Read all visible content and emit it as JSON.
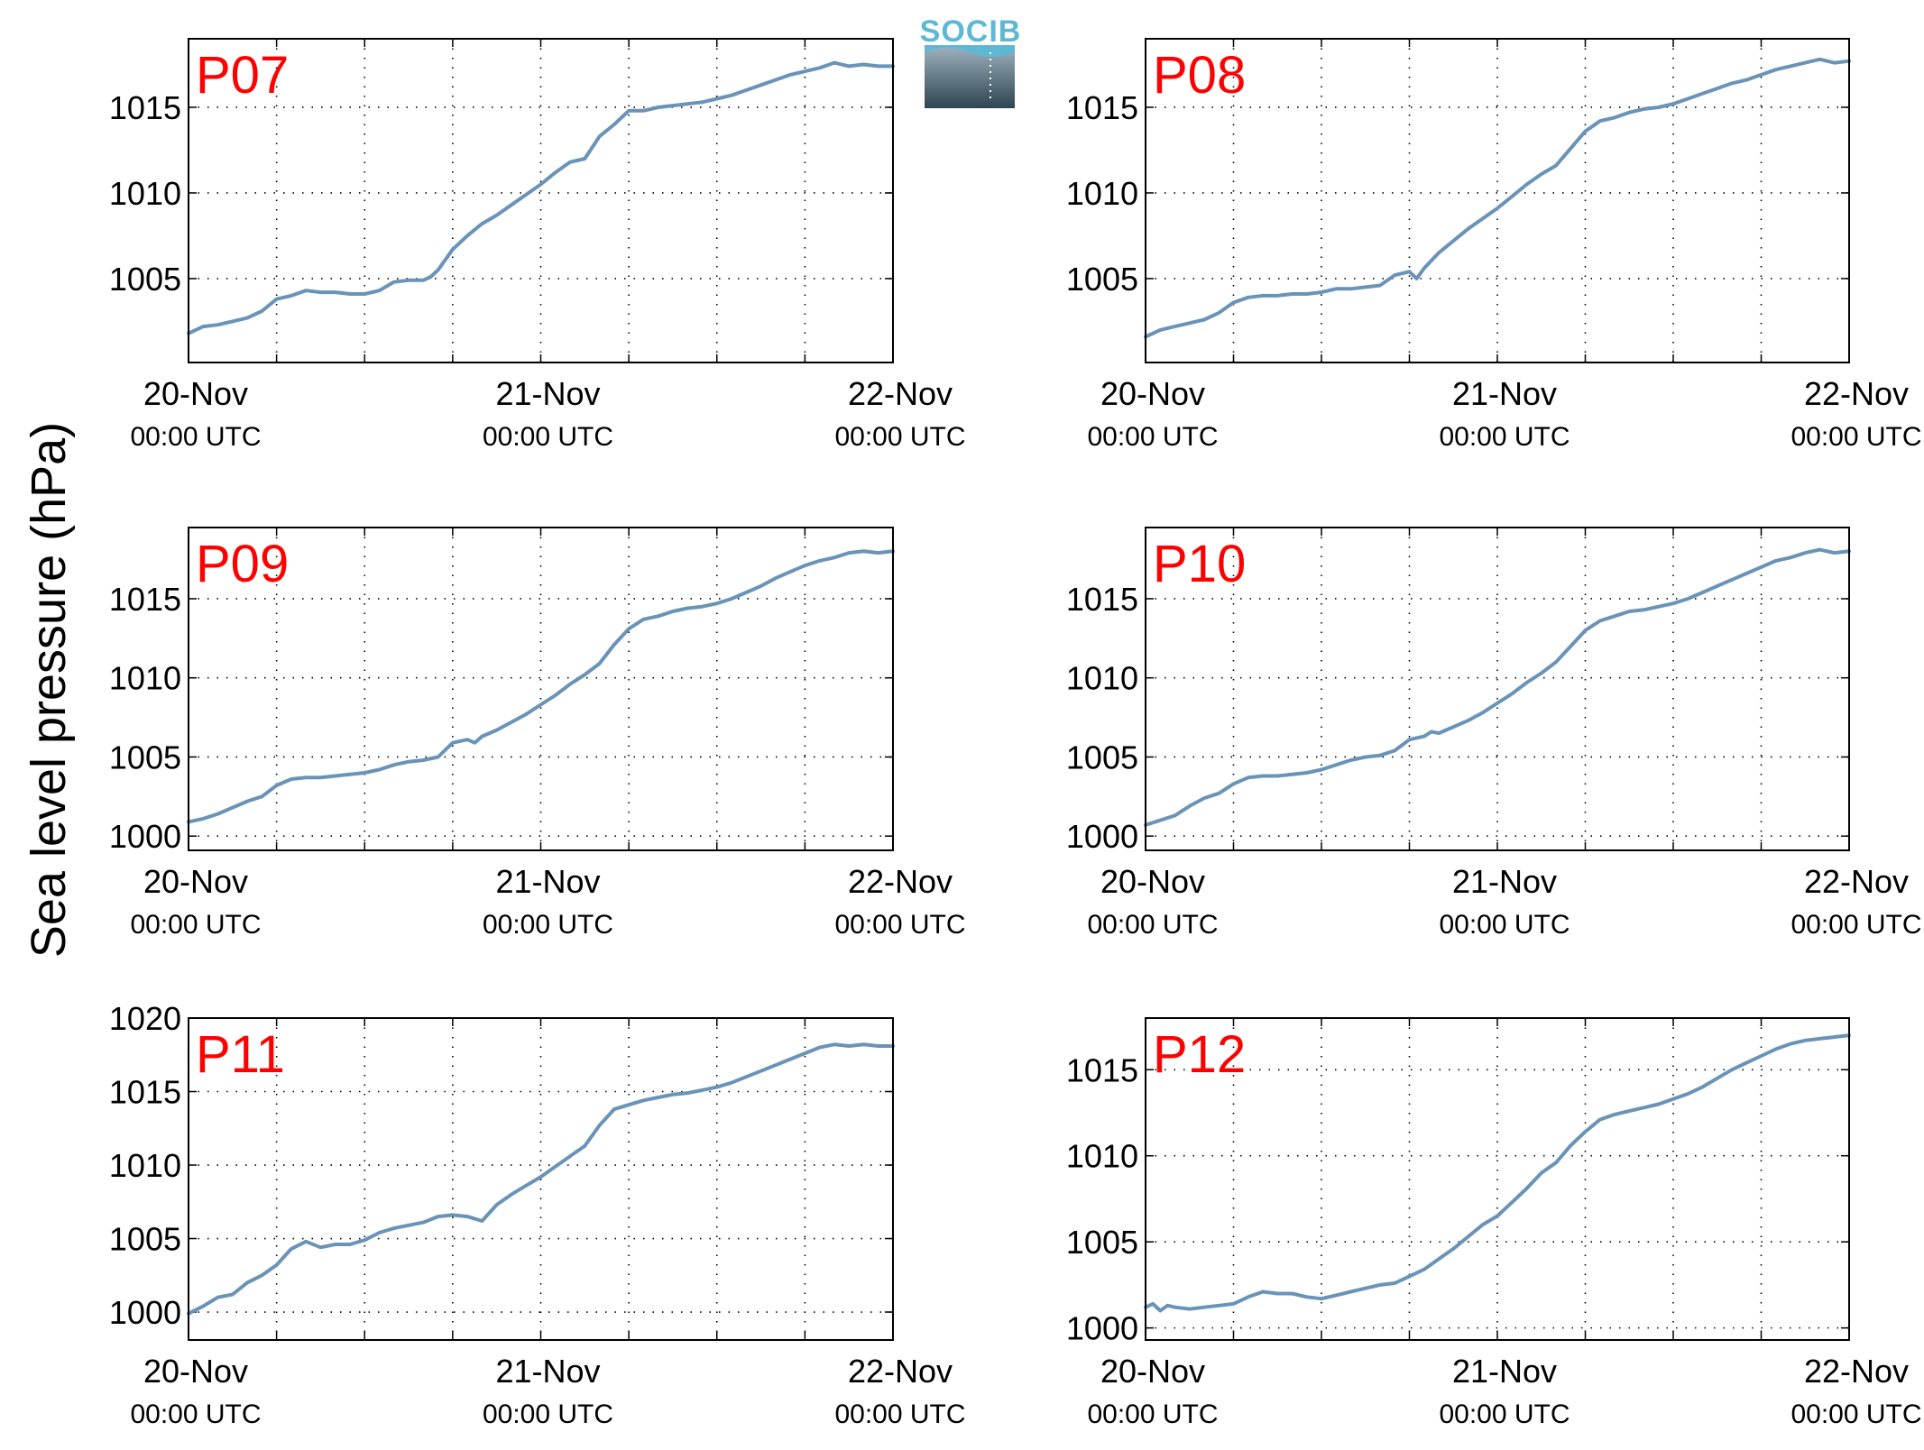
{
  "ylabel": "Sea level pressure (hPa)",
  "logo": {
    "text": "SOCIB",
    "icon": "socib-logo",
    "color_top": "#5fb8d3",
    "color_bottom": "#2e4450"
  },
  "style": {
    "line_color": "#6a93b8",
    "title_color": "#ff0000",
    "grid": "dotted"
  },
  "chart_data": [
    {
      "type": "line",
      "title": "P07",
      "x_ticks": [
        {
          "date": "20-Nov",
          "time": "00:00 UTC"
        },
        {
          "date": "21-Nov",
          "time": "00:00 UTC"
        },
        {
          "date": "22-Nov",
          "time": "00:00 UTC"
        }
      ],
      "y_ticks": [
        1005,
        1010,
        1015
      ],
      "xlim_hours": [
        0,
        48
      ],
      "ylim": [
        1000.1,
        1019.0
      ],
      "grid": true,
      "series": [
        {
          "x_hours": [
            0,
            1,
            2,
            3,
            4,
            5,
            6,
            7,
            8,
            9,
            10,
            11,
            12,
            13,
            14,
            15,
            16,
            16.5,
            17,
            18,
            19,
            20,
            21,
            22,
            23,
            24,
            25,
            26,
            27,
            28,
            29,
            30,
            31,
            32,
            33,
            34,
            35,
            36,
            37,
            38,
            39,
            40,
            41,
            42,
            43,
            44,
            45,
            46,
            47,
            48
          ],
          "values": [
            1001.8,
            1002.2,
            1002.3,
            1002.5,
            1002.7,
            1003.1,
            1003.8,
            1004.0,
            1004.3,
            1004.2,
            1004.2,
            1004.1,
            1004.1,
            1004.3,
            1004.8,
            1004.9,
            1004.9,
            1005.1,
            1005.5,
            1006.7,
            1007.5,
            1008.2,
            1008.7,
            1009.3,
            1009.9,
            1010.5,
            1011.2,
            1011.8,
            1012.0,
            1013.3,
            1014.0,
            1014.8,
            1014.8,
            1015.0,
            1015.1,
            1015.2,
            1015.3,
            1015.5,
            1015.7,
            1016.0,
            1016.3,
            1016.6,
            1016.9,
            1017.1,
            1017.3,
            1017.6,
            1017.4,
            1017.5,
            1017.4,
            1017.4
          ]
        }
      ]
    },
    {
      "type": "line",
      "title": "P08",
      "x_ticks": [
        {
          "date": "20-Nov",
          "time": "00:00 UTC"
        },
        {
          "date": "21-Nov",
          "time": "00:00 UTC"
        },
        {
          "date": "22-Nov",
          "time": "00:00 UTC"
        }
      ],
      "y_ticks": [
        1005,
        1010,
        1015
      ],
      "xlim_hours": [
        0,
        48
      ],
      "ylim": [
        1000.1,
        1019.0
      ],
      "grid": true,
      "series": [
        {
          "x_hours": [
            0,
            1,
            2,
            3,
            4,
            5,
            6,
            7,
            8,
            9,
            10,
            11,
            12,
            13,
            14,
            15,
            16,
            17,
            18,
            18.5,
            19,
            20,
            21,
            22,
            23,
            24,
            25,
            26,
            27,
            28,
            29,
            30,
            31,
            32,
            33,
            34,
            35,
            36,
            37,
            38,
            39,
            40,
            41,
            42,
            43,
            44,
            45,
            46,
            47,
            48
          ],
          "values": [
            1001.6,
            1002.0,
            1002.2,
            1002.4,
            1002.6,
            1003.0,
            1003.6,
            1003.9,
            1004.0,
            1004.0,
            1004.1,
            1004.1,
            1004.2,
            1004.4,
            1004.4,
            1004.5,
            1004.6,
            1005.2,
            1005.4,
            1005.0,
            1005.6,
            1006.5,
            1007.2,
            1007.9,
            1008.5,
            1009.1,
            1009.8,
            1010.5,
            1011.1,
            1011.6,
            1012.6,
            1013.6,
            1014.2,
            1014.4,
            1014.7,
            1014.9,
            1015.0,
            1015.2,
            1015.5,
            1015.8,
            1016.1,
            1016.4,
            1016.6,
            1016.9,
            1017.2,
            1017.4,
            1017.6,
            1017.8,
            1017.6,
            1017.7
          ]
        }
      ]
    },
    {
      "type": "line",
      "title": "P09",
      "x_ticks": [
        {
          "date": "20-Nov",
          "time": "00:00 UTC"
        },
        {
          "date": "21-Nov",
          "time": "00:00 UTC"
        },
        {
          "date": "22-Nov",
          "time": "00:00 UTC"
        }
      ],
      "y_ticks": [
        1000,
        1005,
        1010,
        1015
      ],
      "xlim_hours": [
        0,
        48
      ],
      "ylim": [
        999.1,
        1019.5
      ],
      "grid": true,
      "series": [
        {
          "x_hours": [
            0,
            1,
            2,
            3,
            4,
            5,
            6,
            7,
            8,
            9,
            10,
            11,
            12,
            13,
            14,
            15,
            16,
            17,
            18,
            19,
            19.5,
            20,
            21,
            22,
            23,
            24,
            25,
            26,
            27,
            28,
            29,
            30,
            31,
            32,
            33,
            34,
            35,
            36,
            37,
            38,
            39,
            40,
            41,
            42,
            43,
            44,
            45,
            46,
            47,
            48
          ],
          "values": [
            1000.9,
            1001.1,
            1001.4,
            1001.8,
            1002.2,
            1002.5,
            1003.2,
            1003.6,
            1003.7,
            1003.7,
            1003.8,
            1003.9,
            1004.0,
            1004.2,
            1004.5,
            1004.7,
            1004.8,
            1005.0,
            1005.9,
            1006.1,
            1005.9,
            1006.3,
            1006.7,
            1007.2,
            1007.7,
            1008.3,
            1008.9,
            1009.6,
            1010.2,
            1010.9,
            1012.1,
            1013.1,
            1013.7,
            1013.9,
            1014.2,
            1014.4,
            1014.5,
            1014.7,
            1015.0,
            1015.4,
            1015.8,
            1016.3,
            1016.7,
            1017.1,
            1017.4,
            1017.6,
            1017.9,
            1018.0,
            1017.9,
            1018.0
          ]
        }
      ]
    },
    {
      "type": "line",
      "title": "P10",
      "x_ticks": [
        {
          "date": "20-Nov",
          "time": "00:00 UTC"
        },
        {
          "date": "21-Nov",
          "time": "00:00 UTC"
        },
        {
          "date": "22-Nov",
          "time": "00:00 UTC"
        }
      ],
      "y_ticks": [
        1000,
        1005,
        1010,
        1015
      ],
      "xlim_hours": [
        0,
        48
      ],
      "ylim": [
        999.1,
        1019.5
      ],
      "grid": true,
      "series": [
        {
          "x_hours": [
            0,
            1,
            2,
            3,
            4,
            5,
            6,
            7,
            8,
            9,
            10,
            11,
            12,
            13,
            14,
            15,
            16,
            17,
            18,
            19,
            19.5,
            20,
            21,
            22,
            23,
            24,
            25,
            26,
            27,
            28,
            29,
            30,
            31,
            32,
            33,
            34,
            35,
            36,
            37,
            38,
            39,
            40,
            41,
            42,
            43,
            44,
            45,
            46,
            47,
            48
          ],
          "values": [
            1000.7,
            1001.0,
            1001.3,
            1001.9,
            1002.4,
            1002.7,
            1003.3,
            1003.7,
            1003.8,
            1003.8,
            1003.9,
            1004.0,
            1004.2,
            1004.5,
            1004.8,
            1005.0,
            1005.1,
            1005.4,
            1006.1,
            1006.3,
            1006.6,
            1006.5,
            1006.9,
            1007.3,
            1007.8,
            1008.4,
            1009.0,
            1009.7,
            1010.3,
            1011.0,
            1012.0,
            1013.0,
            1013.6,
            1013.9,
            1014.2,
            1014.3,
            1014.5,
            1014.7,
            1015.0,
            1015.4,
            1015.8,
            1016.2,
            1016.6,
            1017.0,
            1017.4,
            1017.6,
            1017.9,
            1018.1,
            1017.9,
            1018.0
          ]
        }
      ]
    },
    {
      "type": "line",
      "title": "P11",
      "x_ticks": [
        {
          "date": "20-Nov",
          "time": "00:00 UTC"
        },
        {
          "date": "21-Nov",
          "time": "00:00 UTC"
        },
        {
          "date": "22-Nov",
          "time": "00:00 UTC"
        }
      ],
      "y_ticks": [
        1000,
        1005,
        1010,
        1015,
        1020
      ],
      "xlim_hours": [
        0,
        48
      ],
      "ylim": [
        998.1,
        1020.0
      ],
      "grid": true,
      "series": [
        {
          "x_hours": [
            0,
            1,
            2,
            3,
            4,
            5,
            6,
            7,
            8,
            9,
            10,
            11,
            12,
            13,
            14,
            15,
            16,
            17,
            18,
            19,
            20,
            21,
            22,
            23,
            24,
            25,
            26,
            27,
            28,
            29,
            30,
            31,
            32,
            33,
            34,
            35,
            36,
            37,
            38,
            39,
            40,
            41,
            42,
            43,
            44,
            45,
            46,
            47,
            48
          ],
          "values": [
            999.9,
            1000.4,
            1001.0,
            1001.2,
            1002.0,
            1002.5,
            1003.2,
            1004.3,
            1004.8,
            1004.4,
            1004.6,
            1004.6,
            1004.9,
            1005.4,
            1005.7,
            1005.9,
            1006.1,
            1006.5,
            1006.6,
            1006.5,
            1006.2,
            1007.3,
            1008.0,
            1008.6,
            1009.2,
            1009.9,
            1010.6,
            1011.3,
            1012.7,
            1013.8,
            1014.1,
            1014.4,
            1014.6,
            1014.8,
            1014.9,
            1015.1,
            1015.3,
            1015.6,
            1016.0,
            1016.4,
            1016.8,
            1017.2,
            1017.6,
            1018.0,
            1018.2,
            1018.1,
            1018.2,
            1018.1,
            1018.1
          ]
        }
      ]
    },
    {
      "type": "line",
      "title": "P12",
      "x_ticks": [
        {
          "date": "20-Nov",
          "time": "00:00 UTC"
        },
        {
          "date": "21-Nov",
          "time": "00:00 UTC"
        },
        {
          "date": "22-Nov",
          "time": "00:00 UTC"
        }
      ],
      "y_ticks": [
        1000,
        1005,
        1010,
        1015
      ],
      "xlim_hours": [
        0,
        48
      ],
      "ylim": [
        999.3,
        1018.0
      ],
      "grid": true,
      "series": [
        {
          "x_hours": [
            0,
            0.5,
            1,
            1.5,
            2,
            3,
            4,
            5,
            6,
            7,
            8,
            9,
            10,
            11,
            12,
            13,
            14,
            15,
            16,
            17,
            18,
            19,
            20,
            21,
            22,
            23,
            24,
            25,
            26,
            27,
            28,
            29,
            30,
            31,
            32,
            33,
            34,
            35,
            36,
            37,
            38,
            39,
            40,
            41,
            42,
            43,
            44,
            45,
            46,
            47,
            48
          ],
          "values": [
            1001.2,
            1001.4,
            1001.0,
            1001.3,
            1001.2,
            1001.1,
            1001.2,
            1001.3,
            1001.4,
            1001.8,
            1002.1,
            1002.0,
            1002.0,
            1001.8,
            1001.7,
            1001.9,
            1002.1,
            1002.3,
            1002.5,
            1002.6,
            1003.0,
            1003.4,
            1004.0,
            1004.6,
            1005.3,
            1006.0,
            1006.5,
            1007.3,
            1008.1,
            1009.0,
            1009.6,
            1010.6,
            1011.4,
            1012.1,
            1012.4,
            1012.6,
            1012.8,
            1013.0,
            1013.3,
            1013.6,
            1014.0,
            1014.5,
            1015.0,
            1015.4,
            1015.8,
            1016.2,
            1016.5,
            1016.7,
            1016.8,
            1016.9,
            1017.0
          ]
        }
      ]
    }
  ]
}
